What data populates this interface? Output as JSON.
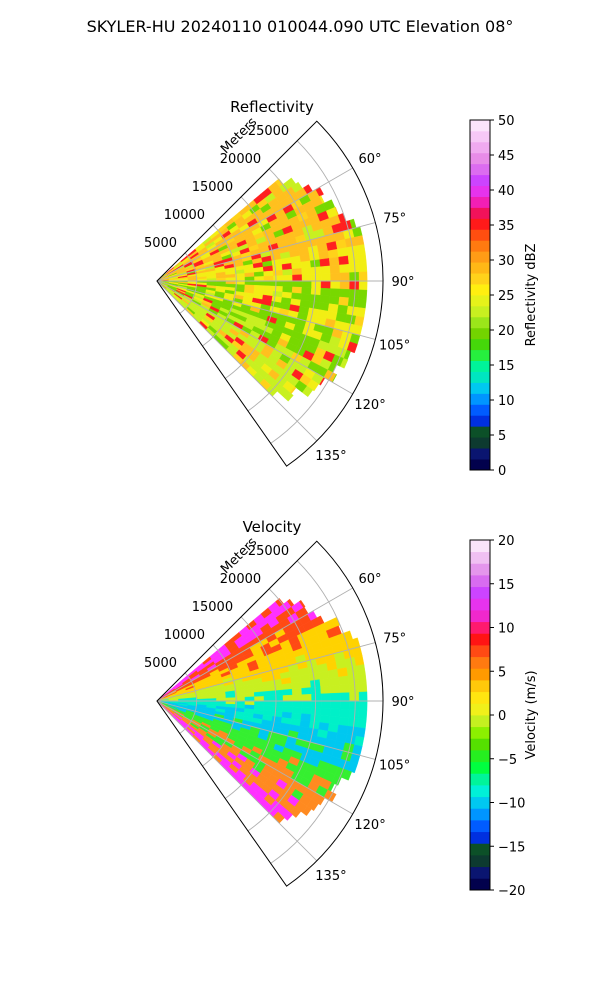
{
  "figure_title": "SKYLER-HU  20240110  010044.090 UTC Elevation 08°",
  "chart_data": [
    {
      "type": "polar-sector",
      "title": "Reflectivity",
      "range_label": "Meters",
      "range_ticks": [
        "5000",
        "10000",
        "15000",
        "20000",
        "25000"
      ],
      "range_tick_values": [
        5000,
        10000,
        15000,
        20000,
        25000
      ],
      "r_max": 28500,
      "theta_range_deg": [
        45,
        145
      ],
      "angle_ticks": [
        "60°",
        "75°",
        "90°",
        "105°",
        "120°",
        "135°"
      ],
      "angle_tick_values": [
        60,
        75,
        90,
        105,
        120,
        135
      ],
      "data_extent_deg": [
        50,
        135
      ],
      "grid": true,
      "colorbar": {
        "label": "Reflectivity dBZ",
        "min": 0,
        "max": 50,
        "ticks": [
          "0",
          "5",
          "10",
          "15",
          "20",
          "25",
          "30",
          "35",
          "40",
          "45",
          "50"
        ],
        "tick_values": [
          0,
          5,
          10,
          15,
          20,
          25,
          30,
          35,
          40,
          45,
          50
        ],
        "colors": [
          "#02014d",
          "#0a1570",
          "#0d3a30",
          "#0c5028",
          "#0030e0",
          "#005cff",
          "#0095ff",
          "#00c8f0",
          "#00e6c0",
          "#00f49a",
          "#26ef3e",
          "#45d80a",
          "#73d400",
          "#9be61a",
          "#c8f020",
          "#e6f21a",
          "#ffef10",
          "#ffd21a",
          "#ffb816",
          "#ff9c16",
          "#ff7a10",
          "#ff4e10",
          "#ff1a1a",
          "#f2125a",
          "#f21fb4",
          "#e633ee",
          "#cc44ff",
          "#dc6cf0",
          "#e88ce8",
          "#f0aaf0",
          "#f6c8f6",
          "#fbe4fb"
        ]
      },
      "field_palette": [
        "#ffc01e",
        "#ffd21a",
        "#f2ee14",
        "#c8f020",
        "#78d800",
        "#ff2020",
        "#b8f040",
        "#ff8a20"
      ]
    },
    {
      "type": "polar-sector",
      "title": "Velocity",
      "range_label": "Meters",
      "range_ticks": [
        "5000",
        "10000",
        "15000",
        "20000",
        "25000"
      ],
      "range_tick_values": [
        5000,
        10000,
        15000,
        20000,
        25000
      ],
      "r_max": 28500,
      "theta_range_deg": [
        45,
        145
      ],
      "angle_ticks": [
        "60°",
        "75°",
        "90°",
        "105°",
        "120°",
        "135°"
      ],
      "angle_tick_values": [
        60,
        75,
        90,
        105,
        120,
        135
      ],
      "data_extent_deg": [
        50,
        135
      ],
      "grid": true,
      "colorbar": {
        "label": "Velocity (m/s)",
        "min": -20,
        "max": 20,
        "ticks": [
          "−20",
          "−15",
          "−10",
          "−5",
          "0",
          "5",
          "10",
          "15",
          "20"
        ],
        "tick_values": [
          -20,
          -15,
          -10,
          -5,
          0,
          5,
          10,
          15,
          20
        ],
        "colors": [
          "#02014d",
          "#0a1570",
          "#0d3a30",
          "#0c5028",
          "#0030e0",
          "#005cff",
          "#0095ff",
          "#00c8f0",
          "#00f0d8",
          "#00f49a",
          "#00ff40",
          "#26ef20",
          "#55e000",
          "#8cf000",
          "#c4f020",
          "#f0f01a",
          "#ffe610",
          "#ffc80a",
          "#ff9a00",
          "#ff7a10",
          "#ff4a14",
          "#ff1414",
          "#ff1a6e",
          "#f028cc",
          "#e633ee",
          "#cc44ff",
          "#d86cf0",
          "#e496ec",
          "#f0c0f2",
          "#fae4fa"
        ]
      },
      "field_palette": [
        "#ff30ff",
        "#ff4a14",
        "#ffd200",
        "#c8f020",
        "#00f0c8",
        "#00c8f0",
        "#35ef30",
        "#ff8a20"
      ]
    }
  ]
}
